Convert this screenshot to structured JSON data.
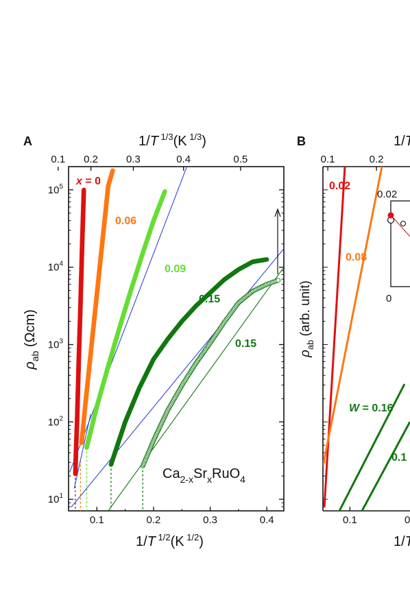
{
  "chart_data": [
    {
      "type": "scatter",
      "panel_label": "A",
      "xlabel": "1/T 1/2(K 1/2)",
      "x2label": "1/T 1/3(K 1/3)",
      "ylabel": "ρab (Ωcm)",
      "y_scale": "log",
      "xlim": [
        0.05,
        0.43
      ],
      "ylim_log10": [
        0.85,
        5.3
      ],
      "x_ticks": [
        0.1,
        0.2,
        0.3,
        0.4
      ],
      "x_tick_labels": [
        "0.1",
        "0.2",
        "0.3",
        "0.4"
      ],
      "x2_ticks": [
        0.1,
        0.2,
        0.3,
        0.4,
        0.5
      ],
      "x2_tick_labels": [
        "0.1",
        "0.2",
        "0.3",
        "0.4",
        "0.5"
      ],
      "y_tick_exps": [
        1,
        2,
        3,
        4,
        5
      ],
      "annotation": {
        "text": "Ca2-xSrxRuO4"
      },
      "series": [
        {
          "name": "x = 0",
          "color": "#dd1111",
          "filled": true,
          "points": [
            [
              0.062,
              1.33
            ],
            [
              0.063,
              1.6
            ],
            [
              0.065,
              2.0
            ],
            [
              0.068,
              2.8
            ],
            [
              0.071,
              3.5
            ],
            [
              0.074,
              4.3
            ],
            [
              0.077,
              5.0
            ]
          ]
        },
        {
          "name": "0.06",
          "color": "#ff7711",
          "filled": true,
          "points": [
            [
              0.073,
              1.73
            ],
            [
              0.08,
              2.25
            ],
            [
              0.09,
              2.95
            ],
            [
              0.1,
              3.65
            ],
            [
              0.11,
              4.35
            ],
            [
              0.12,
              5.05
            ],
            [
              0.128,
              5.25
            ]
          ]
        },
        {
          "name": "0.09",
          "color": "#66dd33",
          "filled": true,
          "points": [
            [
              0.082,
              1.67
            ],
            [
              0.1,
              2.2
            ],
            [
              0.12,
              2.72
            ],
            [
              0.14,
              3.22
            ],
            [
              0.16,
              3.7
            ],
            [
              0.18,
              4.16
            ],
            [
              0.2,
              4.6
            ],
            [
              0.22,
              4.98
            ]
          ]
        },
        {
          "name": "0.15",
          "color": "#117711",
          "filled": true,
          "points": [
            [
              0.125,
              1.45
            ],
            [
              0.15,
              2.0
            ],
            [
              0.175,
              2.44
            ],
            [
              0.2,
              2.81
            ],
            [
              0.225,
              3.07
            ],
            [
              0.25,
              3.3
            ],
            [
              0.275,
              3.5
            ],
            [
              0.3,
              3.67
            ],
            [
              0.325,
              3.84
            ],
            [
              0.35,
              3.97
            ],
            [
              0.375,
              4.07
            ],
            [
              0.4,
              4.1
            ]
          ]
        },
        {
          "name": "0.15",
          "color": "#117711",
          "filled": false,
          "points": [
            [
              0.181,
              1.43
            ],
            [
              0.2,
              1.76
            ],
            [
              0.225,
              2.15
            ],
            [
              0.25,
              2.47
            ],
            [
              0.275,
              2.76
            ],
            [
              0.3,
              3.02
            ],
            [
              0.325,
              3.29
            ],
            [
              0.35,
              3.54
            ],
            [
              0.375,
              3.69
            ],
            [
              0.4,
              3.78
            ],
            [
              0.42,
              3.83
            ]
          ]
        }
      ],
      "fit_lines": [
        {
          "color": "#3344dd",
          "points": [
            [
              0.052,
              1.35
            ],
            [
              0.2588,
              5.3
            ]
          ]
        },
        {
          "color": "#3344dd",
          "points": [
            [
              0.055,
              0.9
            ],
            [
              0.43,
              4.24
            ]
          ]
        },
        {
          "color": "#3344dd",
          "points": [
            [
              0.06,
              1.14
            ],
            [
              0.089,
              2.1
            ]
          ]
        },
        {
          "color": "#117711",
          "points": [
            [
              0.12,
              0.85
            ],
            [
              0.43,
              4.0
            ]
          ]
        }
      ],
      "dashed_markers": [
        {
          "x": 0.062,
          "y_top": 1.33,
          "color": "#dd1111"
        },
        {
          "x": 0.071,
          "y_top": 1.5,
          "color": "#ff7711"
        },
        {
          "x": 0.082,
          "y_top": 1.67,
          "color": "#66dd33"
        },
        {
          "x": 0.125,
          "y_top": 1.45,
          "color": "#117711"
        },
        {
          "x": 0.181,
          "y_top": 1.43,
          "color": "#117711"
        }
      ]
    },
    {
      "type": "line",
      "panel_label": "B",
      "x2label": "1/T",
      "ylabel": "ρab (arb. unit)",
      "y_scale": "log",
      "x_ticks": [
        0.1
      ],
      "x_tick_labels": [
        "0.1"
      ],
      "x2_ticks": [
        0.1,
        0.2
      ],
      "x2_tick_labels": [
        "0.1",
        "0.2"
      ],
      "series": [
        {
          "name": "0.02",
          "color": "#dd1111"
        },
        {
          "name": "0.08",
          "color": "#ff7711"
        },
        {
          "name": "W = 0.16",
          "color": "#117711"
        },
        {
          "name": "0.1",
          "color": "#117711"
        }
      ],
      "inset": {
        "tick_labels": [
          "0.02",
          "0"
        ]
      }
    }
  ]
}
